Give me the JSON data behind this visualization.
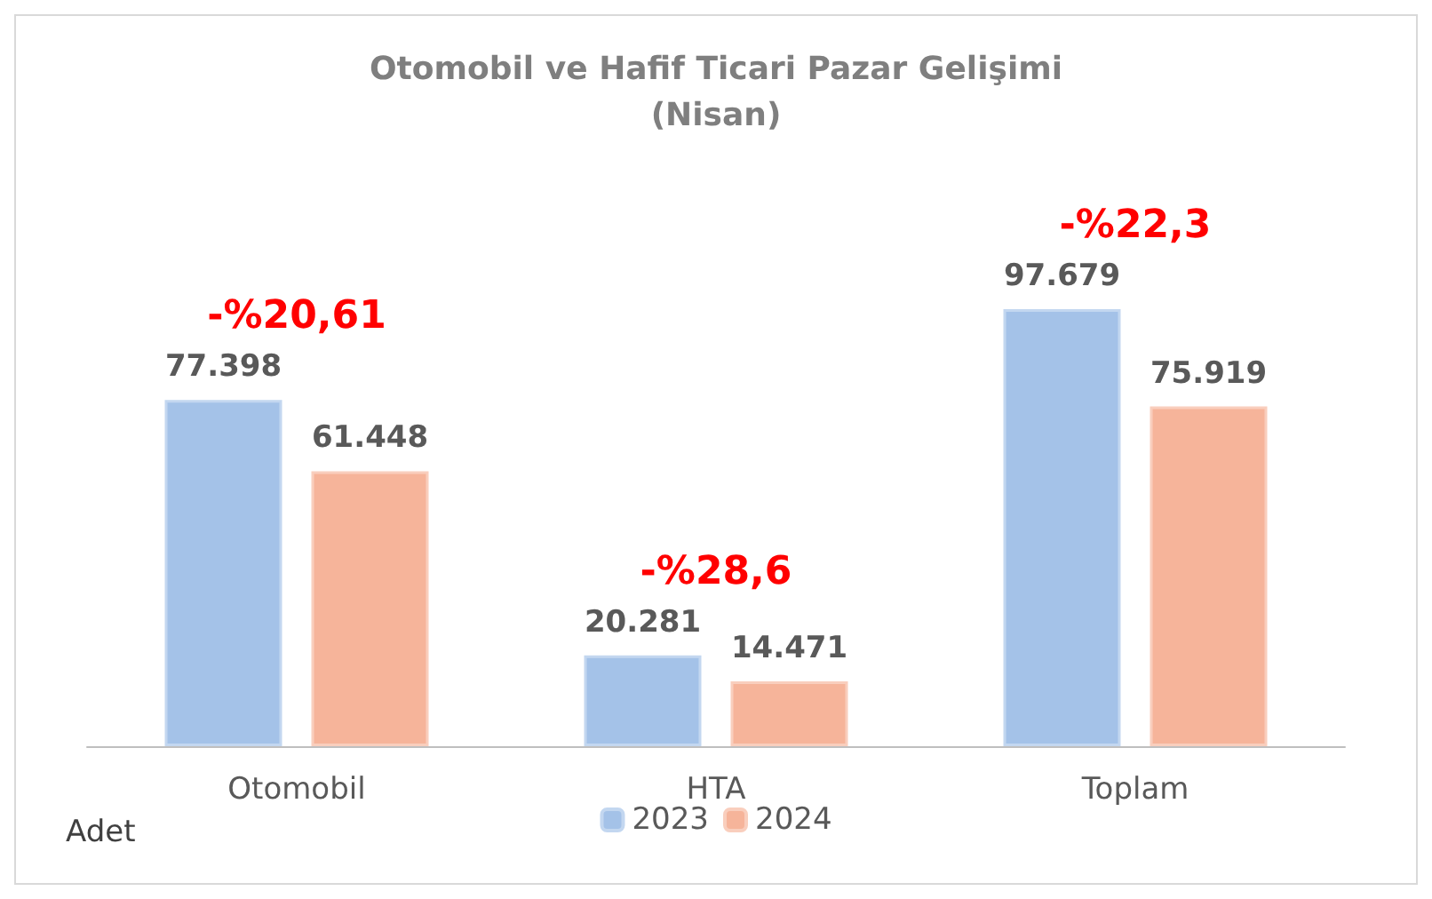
{
  "chart_data": {
    "type": "bar",
    "title": "Otomobil ve Hafif Ticari Pazar Gelişimi\n(Nisan)",
    "categories": [
      "Otomobil",
      "HTA",
      "Toplam"
    ],
    "series": [
      {
        "name": "2023",
        "color": "#a4c2e8",
        "values": [
          77398,
          20281,
          97679
        ],
        "value_labels": [
          "77.398",
          "20.281",
          "97.679"
        ]
      },
      {
        "name": "2024",
        "color": "#f6b49a",
        "values": [
          61448,
          14471,
          75919
        ],
        "value_labels": [
          "61.448",
          "14.471",
          "75.919"
        ]
      }
    ],
    "annotations": [
      "-%20,61",
      "-%28,6",
      "-%22,3",
      "Adet"
    ],
    "legend": "bottom",
    "grid": false
  }
}
